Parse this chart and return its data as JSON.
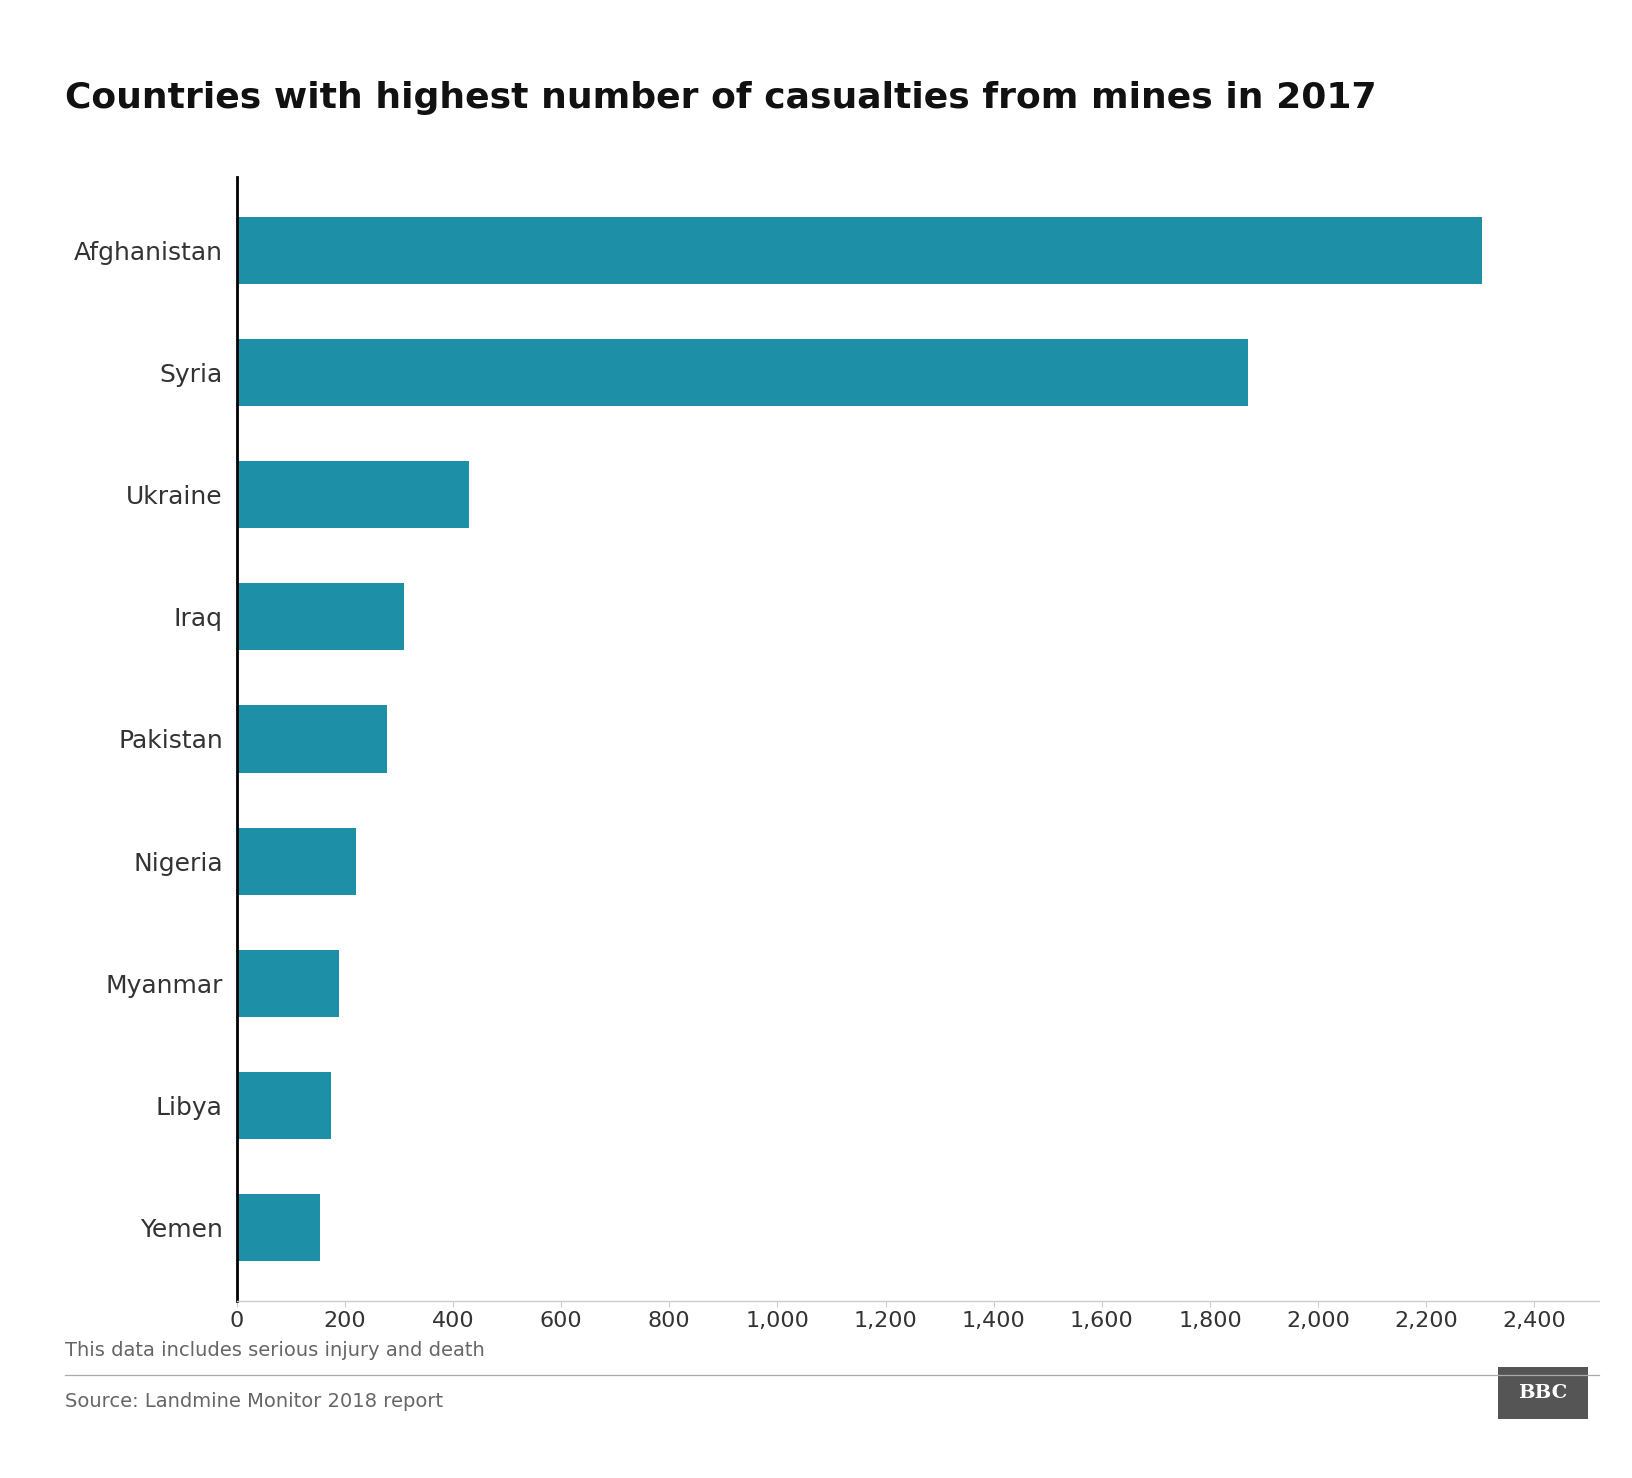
{
  "title": "Countries with highest number of casualties from mines in 2017",
  "categories": [
    "Afghanistan",
    "Syria",
    "Ukraine",
    "Iraq",
    "Pakistan",
    "Nigeria",
    "Myanmar",
    "Libya",
    "Yemen"
  ],
  "values": [
    2303,
    1870,
    430,
    310,
    278,
    220,
    190,
    175,
    155
  ],
  "bar_color": "#1d8fa6",
  "xlim": [
    0,
    2520
  ],
  "xticks": [
    0,
    200,
    400,
    600,
    800,
    1000,
    1200,
    1400,
    1600,
    1800,
    2000,
    2200,
    2400
  ],
  "xtick_labels": [
    "0",
    "200",
    "400",
    "600",
    "800",
    "1,000",
    "1,200",
    "1,400",
    "1,600",
    "1,800",
    "2,000",
    "2,200",
    "2,400"
  ],
  "note": "This data includes serious injury and death",
  "source": "Source: Landmine Monitor 2018 report",
  "bbc_text": "BBC",
  "background_color": "#ffffff",
  "title_fontsize": 26,
  "label_fontsize": 18,
  "tick_fontsize": 16,
  "note_fontsize": 14,
  "source_fontsize": 14
}
